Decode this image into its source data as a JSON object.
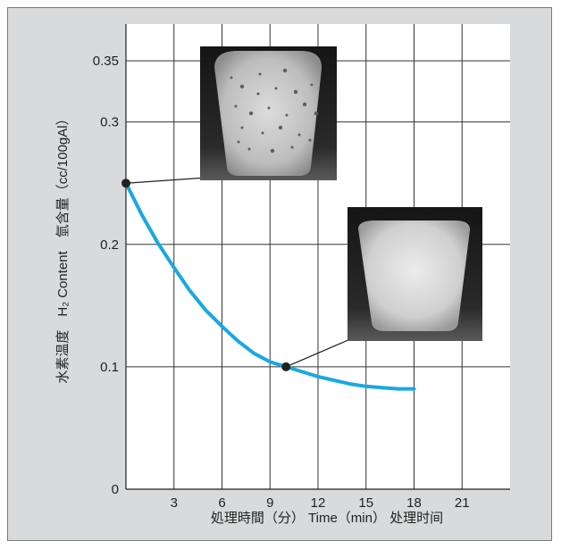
{
  "chart_data": {
    "type": "line",
    "title": "",
    "xlabel": "処理時間（分） Time（min） 处理时间",
    "ylabel": "水素温度　H₂ Content　氫含量（cc/100gAl）",
    "xlim": [
      0,
      24
    ],
    "ylim": [
      0,
      0.38
    ],
    "x_ticks": [
      3,
      6,
      9,
      12,
      15,
      18,
      21
    ],
    "x_tick_labels": [
      "3",
      "6",
      "9",
      "12",
      "15",
      "18",
      "21"
    ],
    "y_ticks": [
      0,
      0.1,
      0.2,
      0.3,
      0.35
    ],
    "y_tick_labels": [
      "0",
      "0.1",
      "0.2",
      "0.3",
      "0.35"
    ],
    "grid": true,
    "series": [
      {
        "color": "#1aa8e0",
        "x": [
          0,
          1,
          2,
          3,
          4,
          5,
          6,
          7,
          8,
          9,
          10,
          11,
          12,
          13,
          14,
          15,
          16,
          17,
          18
        ],
        "y": [
          0.25,
          0.224,
          0.201,
          0.181,
          0.162,
          0.146,
          0.133,
          0.121,
          0.111,
          0.104,
          0.1,
          0.096,
          0.092,
          0.089,
          0.086,
          0.084,
          0.083,
          0.082,
          0.082
        ]
      }
    ],
    "markers": [
      {
        "x": 0,
        "y": 0.25,
        "callout": "sample-porous"
      },
      {
        "x": 10,
        "y": 0.1,
        "callout": "sample-dense"
      }
    ],
    "colors": {
      "panel_background": "#d9dadb",
      "plot_background": "#ffffff",
      "grid": "#333333",
      "line": "#1aa8e0",
      "marker": "#222222"
    }
  }
}
